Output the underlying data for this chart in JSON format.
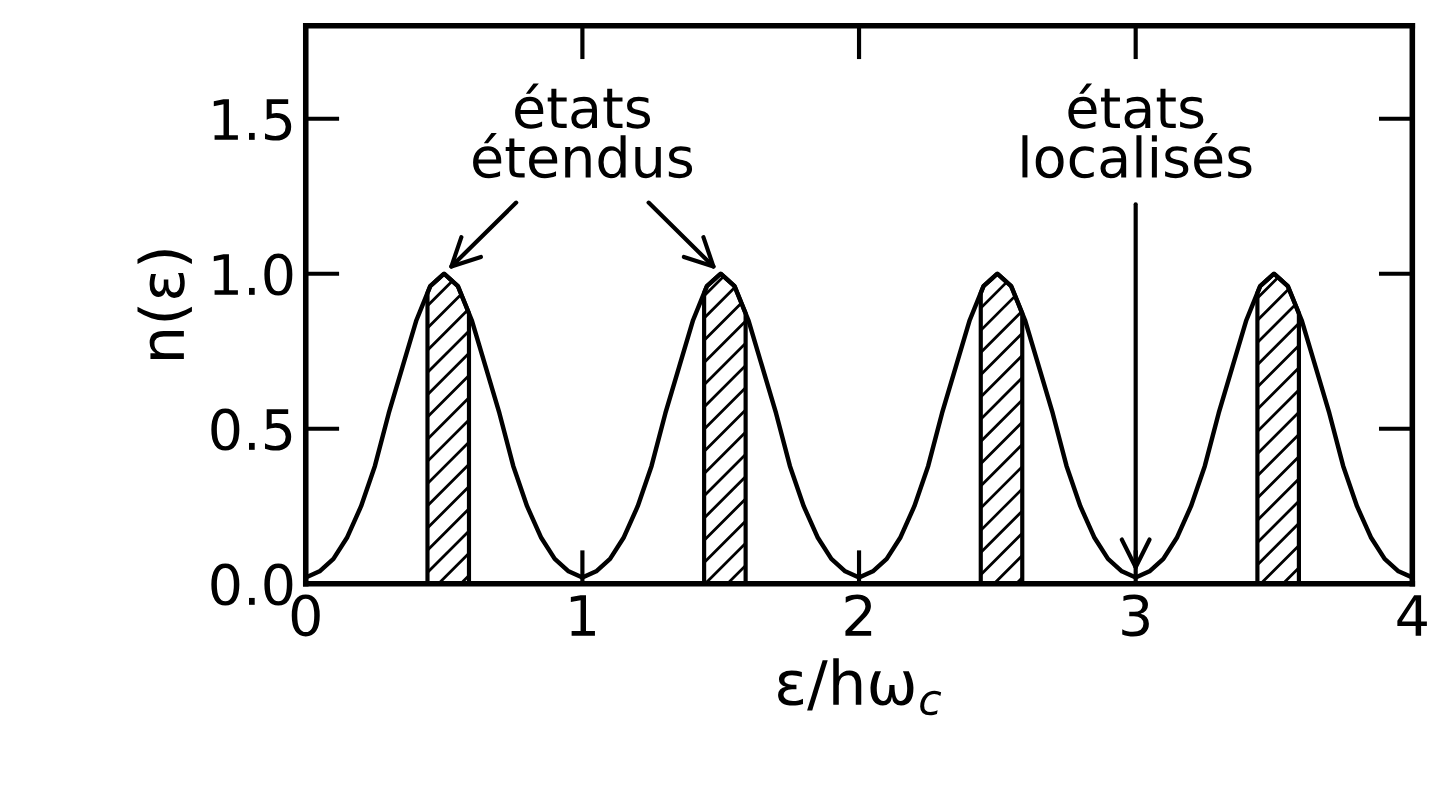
{
  "chart_data": {
    "type": "line",
    "xlabel": "ε/hω$_{c}$",
    "ylabel": "n(ε)",
    "x": [
      0,
      0.05,
      0.1,
      0.15,
      0.2,
      0.25,
      0.3,
      0.35,
      0.4,
      0.45,
      0.5,
      0.55,
      0.6,
      0.65,
      0.7,
      0.75,
      0.8,
      0.85,
      0.9,
      0.95,
      1.0,
      1.05,
      1.1,
      1.15,
      1.2,
      1.25,
      1.3,
      1.35,
      1.4,
      1.45,
      1.5,
      1.55,
      1.6,
      1.65,
      1.7,
      1.75,
      1.8,
      1.85,
      1.9,
      1.95,
      2.0,
      2.05,
      2.1,
      2.15,
      2.2,
      2.25,
      2.3,
      2.35,
      2.4,
      2.45,
      2.5,
      2.55,
      2.6,
      2.65,
      2.7,
      2.75,
      2.8,
      2.85,
      2.9,
      2.95,
      3.0,
      3.05,
      3.1,
      3.15,
      3.2,
      3.25,
      3.3,
      3.35,
      3.4,
      3.45,
      3.5,
      3.55,
      3.6,
      3.65,
      3.7,
      3.75,
      3.8,
      3.85,
      3.9,
      3.95,
      4.0
    ],
    "series": [
      {
        "color": "#000000",
        "values": [
          0.02,
          0.04,
          0.08,
          0.15,
          0.25,
          0.38,
          0.55,
          0.7,
          0.85,
          0.96,
          1.0,
          0.96,
          0.85,
          0.7,
          0.55,
          0.38,
          0.25,
          0.15,
          0.08,
          0.04,
          0.02,
          0.04,
          0.08,
          0.15,
          0.25,
          0.38,
          0.55,
          0.7,
          0.85,
          0.96,
          1.0,
          0.96,
          0.85,
          0.7,
          0.55,
          0.38,
          0.25,
          0.15,
          0.08,
          0.04,
          0.02,
          0.04,
          0.08,
          0.15,
          0.25,
          0.38,
          0.55,
          0.7,
          0.85,
          0.96,
          1.0,
          0.96,
          0.85,
          0.7,
          0.55,
          0.38,
          0.25,
          0.15,
          0.08,
          0.04,
          0.02,
          0.04,
          0.08,
          0.15,
          0.25,
          0.38,
          0.55,
          0.7,
          0.85,
          0.96,
          1.0,
          0.96,
          0.85,
          0.7,
          0.55,
          0.38,
          0.25,
          0.15,
          0.08,
          0.04,
          0.02
        ]
      }
    ],
    "xlim": [
      0,
      4
    ],
    "xticks": [
      0,
      1,
      2,
      3,
      4
    ],
    "ylim": [
      0,
      1.8
    ],
    "yticks": [
      {
        "value": 0.0,
        "label": "0.0"
      },
      {
        "value": 0.5,
        "label": "0.5"
      },
      {
        "value": 1.0,
        "label": "1.0"
      },
      {
        "value": 1.5,
        "label": "1.5"
      }
    ],
    "bands": [
      {
        "axis": "x",
        "from": 0.44,
        "to": 0.59,
        "color": "#000000"
      },
      {
        "axis": "x",
        "from": 1.44,
        "to": 1.59,
        "color": "#000000"
      },
      {
        "axis": "x",
        "from": 2.44,
        "to": 2.59,
        "color": "#000000"
      },
      {
        "axis": "x",
        "from": 3.44,
        "to": 3.59,
        "color": "#000000"
      }
    ],
    "annotations": [
      {
        "text": "états\nétendus",
        "x": 0.5,
        "y": 1.0
      },
      {
        "text": "états\nlocalisés",
        "x": 3,
        "y": 0.02
      }
    ],
    "grid": false,
    "legend": false,
    "marker": "none",
    "line_style": "solid"
  }
}
